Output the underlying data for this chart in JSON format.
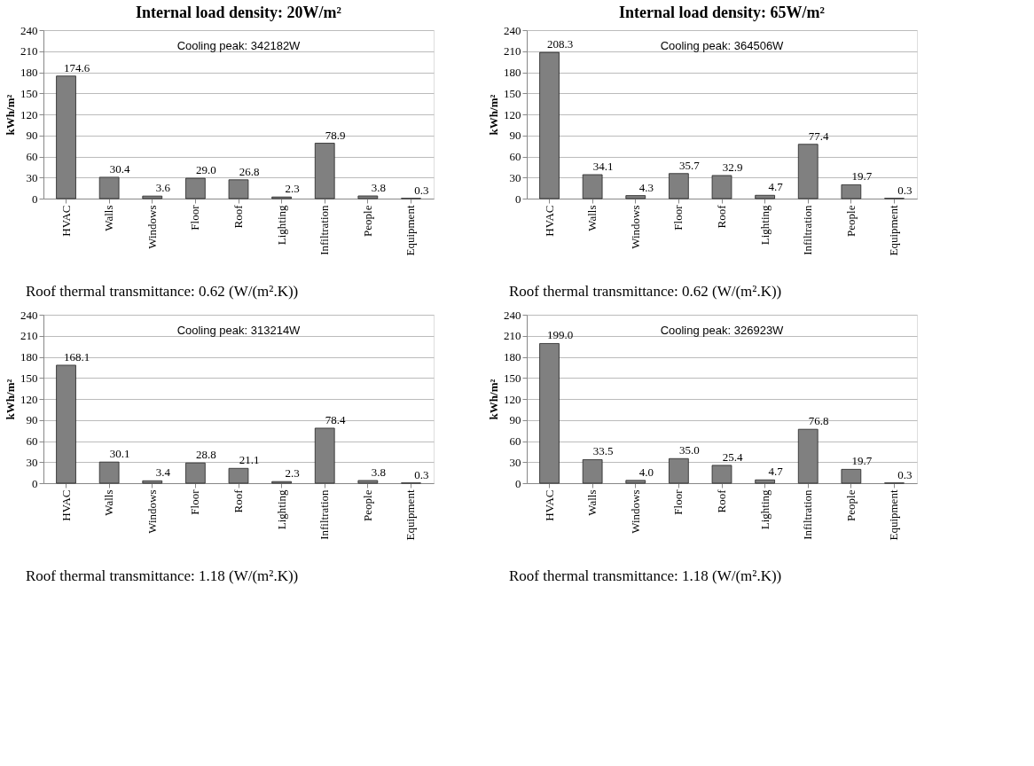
{
  "chart_data": [
    {
      "type": "bar",
      "title": "Internal load density: 20W/m²",
      "ylabel": "kWh/m²",
      "categories": [
        "HVAC",
        "Walls",
        "Windows",
        "Floor",
        "Roof",
        "Lighting",
        "Infiltration",
        "People",
        "Equipment"
      ],
      "values": [
        174.6,
        30.4,
        3.6,
        29.0,
        26.8,
        2.3,
        78.9,
        3.8,
        0.3
      ],
      "value_labels": [
        "174.6",
        "30.4",
        "3.6",
        "29.0",
        "26.8",
        "2.3",
        "78.9",
        "3.8",
        "0.3"
      ],
      "color": "#808080",
      "ylim": [
        0,
        240
      ],
      "yticks": [
        0,
        30,
        60,
        90,
        120,
        150,
        180,
        210,
        240
      ],
      "grid": "y",
      "annotations": [
        "Cooling peak: 342182W",
        "Roof thermal transmittance: 0.62 (W/(m².K))"
      ]
    },
    {
      "type": "bar",
      "title": "Internal load density: 65W/m²",
      "ylabel": "kWh/m²",
      "categories": [
        "HVAC",
        "Walls",
        "Windows",
        "Floor",
        "Roof",
        "Lighting",
        "Infiltration",
        "People",
        "Equipment"
      ],
      "values": [
        208.3,
        34.1,
        4.3,
        35.7,
        32.9,
        4.7,
        77.4,
        19.7,
        0.3
      ],
      "value_labels": [
        "208.3",
        "34.1",
        "4.3",
        "35.7",
        "32.9",
        "4.7",
        "77.4",
        "19.7",
        "0.3"
      ],
      "color": "#808080",
      "ylim": [
        0,
        240
      ],
      "yticks": [
        0,
        30,
        60,
        90,
        120,
        150,
        180,
        210,
        240
      ],
      "grid": "y",
      "annotations": [
        "Cooling peak: 364506W",
        "Roof thermal transmittance: 0.62 (W/(m².K))"
      ]
    },
    {
      "type": "bar",
      "ylabel": "kWh/m²",
      "categories": [
        "HVAC",
        "Walls",
        "Windows",
        "Floor",
        "Roof",
        "Lighting",
        "Infiltration",
        "People",
        "Equipment"
      ],
      "values": [
        168.1,
        30.1,
        3.4,
        28.8,
        21.1,
        2.3,
        78.4,
        3.8,
        0.3
      ],
      "value_labels": [
        "168.1",
        "30.1",
        "3.4",
        "28.8",
        "21.1",
        "2.3",
        "78.4",
        "3.8",
        "0.3"
      ],
      "color": "#808080",
      "ylim": [
        0,
        240
      ],
      "yticks": [
        0,
        30,
        60,
        90,
        120,
        150,
        180,
        210,
        240
      ],
      "grid": "y",
      "annotations": [
        "Cooling peak: 313214W",
        "Roof thermal transmittance: 1.18 (W/(m².K))"
      ]
    },
    {
      "type": "bar",
      "ylabel": "kWh/m²",
      "categories": [
        "HVAC",
        "Walls",
        "Windows",
        "Floor",
        "Roof",
        "Lighting",
        "Infiltration",
        "People",
        "Equipment"
      ],
      "values": [
        199.0,
        33.5,
        4.0,
        35.0,
        25.4,
        4.7,
        76.8,
        19.7,
        0.3
      ],
      "value_labels": [
        "199.0",
        "33.5",
        "4.0",
        "35.0",
        "25.4",
        "4.7",
        "76.8",
        "19.7",
        "0.3"
      ],
      "color": "#808080",
      "ylim": [
        0,
        240
      ],
      "yticks": [
        0,
        30,
        60,
        90,
        120,
        150,
        180,
        210,
        240
      ],
      "grid": "y",
      "annotations": [
        "Cooling peak: 326923W",
        "Roof thermal transmittance: 1.18 (W/(m².K))"
      ]
    }
  ]
}
